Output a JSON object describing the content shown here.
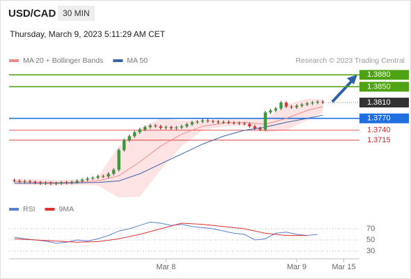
{
  "header": {
    "symbol": "USD/CAD",
    "interval": "30 MIN",
    "datetime": "Thursday, March 9, 2023 5:11:29 AM CET",
    "attribution": "Research © 2023 Trading Central"
  },
  "chart_data": [
    {
      "type": "candlestick",
      "up_color": "#3a9a3a",
      "down_color": "#d83a3a",
      "open": [
        1.3614,
        1.3612,
        1.361,
        1.3611,
        1.3609,
        1.3608,
        1.3606,
        1.3607,
        1.3605,
        1.3606,
        1.3608,
        1.3607,
        1.3609,
        1.3612,
        1.3615,
        1.3618,
        1.362,
        1.3624,
        1.3623,
        1.363,
        1.364,
        1.369,
        1.3715,
        1.3725,
        1.3735,
        1.3742,
        1.3748,
        1.3752,
        1.375,
        1.3746,
        1.3748,
        1.3745,
        1.3747,
        1.375,
        1.3755,
        1.376,
        1.3762,
        1.3765,
        1.3763,
        1.3762,
        1.376,
        1.3761,
        1.3759,
        1.3758,
        1.3757,
        1.3756,
        1.375,
        1.3745,
        1.3742,
        1.3785,
        1.379,
        1.3795,
        1.381,
        1.38,
        1.3798,
        1.3802,
        1.3805,
        1.3808,
        1.381,
        1.3812
      ],
      "high": [
        1.3618,
        1.3616,
        1.3615,
        1.3615,
        1.3613,
        1.3612,
        1.3611,
        1.3611,
        1.361,
        1.3612,
        1.3612,
        1.3613,
        1.3616,
        1.3619,
        1.3622,
        1.3624,
        1.3628,
        1.3628,
        1.3634,
        1.3644,
        1.3694,
        1.3719,
        1.3729,
        1.3739,
        1.3746,
        1.3752,
        1.3756,
        1.3756,
        1.3754,
        1.3752,
        1.3752,
        1.3751,
        1.3754,
        1.3759,
        1.3764,
        1.3766,
        1.3769,
        1.3769,
        1.3767,
        1.3766,
        1.3765,
        1.3765,
        1.3763,
        1.3762,
        1.3761,
        1.376,
        1.3754,
        1.3749,
        1.3789,
        1.3794,
        1.3799,
        1.3814,
        1.3814,
        1.3804,
        1.3806,
        1.3809,
        1.3812,
        1.3814,
        1.3816,
        1.3816
      ],
      "low": [
        1.3608,
        1.3606,
        1.3606,
        1.3605,
        1.3604,
        1.3602,
        1.3602,
        1.3601,
        1.3601,
        1.3602,
        1.3603,
        1.3603,
        1.3605,
        1.3608,
        1.3611,
        1.3614,
        1.3616,
        1.3619,
        1.3619,
        1.3626,
        1.3636,
        1.3686,
        1.3711,
        1.3721,
        1.3731,
        1.3738,
        1.3744,
        1.3746,
        1.3742,
        1.3742,
        1.3741,
        1.3741,
        1.3743,
        1.3746,
        1.3751,
        1.3756,
        1.3758,
        1.3759,
        1.3758,
        1.3756,
        1.3756,
        1.3755,
        1.3754,
        1.3753,
        1.3752,
        1.3746,
        1.3741,
        1.3738,
        1.3738,
        1.3781,
        1.3786,
        1.3791,
        1.3796,
        1.3794,
        1.3794,
        1.3798,
        1.3801,
        1.3804,
        1.3806,
        1.3806
      ],
      "close": [
        1.3612,
        1.361,
        1.3611,
        1.3609,
        1.3608,
        1.3606,
        1.3607,
        1.3605,
        1.3606,
        1.3608,
        1.3607,
        1.3609,
        1.3612,
        1.3615,
        1.3618,
        1.362,
        1.3624,
        1.3623,
        1.363,
        1.364,
        1.369,
        1.3715,
        1.3725,
        1.3735,
        1.3742,
        1.3748,
        1.3752,
        1.375,
        1.3746,
        1.3748,
        1.3745,
        1.3747,
        1.375,
        1.3755,
        1.376,
        1.3762,
        1.3765,
        1.3763,
        1.3762,
        1.376,
        1.3761,
        1.3759,
        1.3758,
        1.3757,
        1.3756,
        1.375,
        1.3745,
        1.3742,
        1.3785,
        1.379,
        1.3795,
        1.381,
        1.38,
        1.3798,
        1.3802,
        1.3805,
        1.3808,
        1.381,
        1.3812,
        1.381
      ],
      "series": [
        {
          "name": "MA 20 + Bollinger Bands",
          "color": "#f08a8a",
          "band_color": "#fde3e3",
          "x": [
            0,
            4,
            8,
            12,
            16,
            20,
            24,
            28,
            32,
            36,
            40,
            44,
            48,
            52,
            56,
            59
          ],
          "values": [
            1.361,
            1.3609,
            1.3608,
            1.3609,
            1.3612,
            1.3625,
            1.366,
            1.37,
            1.373,
            1.375,
            1.3758,
            1.376,
            1.3755,
            1.377,
            1.379,
            1.38
          ],
          "upper": [
            1.3618,
            1.3616,
            1.3614,
            1.3615,
            1.3622,
            1.37,
            1.3745,
            1.377,
            1.3765,
            1.3765,
            1.3768,
            1.3768,
            1.3768,
            1.3805,
            1.382,
            1.3818
          ],
          "lower": [
            1.3602,
            1.3601,
            1.36,
            1.3602,
            1.36,
            1.357,
            1.3572,
            1.364,
            1.37,
            1.374,
            1.375,
            1.3752,
            1.3735,
            1.374,
            1.3765,
            1.3785
          ]
        },
        {
          "name": "MA 50",
          "color": "#3a62a8",
          "x": [
            0,
            4,
            8,
            12,
            16,
            20,
            24,
            28,
            32,
            36,
            40,
            44,
            48,
            52,
            56,
            59
          ],
          "values": [
            1.3606,
            1.3606,
            1.3606,
            1.3607,
            1.3608,
            1.3612,
            1.363,
            1.3655,
            1.368,
            1.3705,
            1.3725,
            1.374,
            1.3748,
            1.376,
            1.377,
            1.3778
          ]
        }
      ],
      "levels": [
        {
          "value": 1.388,
          "label": "1.3880",
          "color": "#4ea214",
          "line": "solid",
          "label_box": true
        },
        {
          "value": 1.385,
          "label": "1.3850",
          "color": "#4ea214",
          "line": "solid",
          "label_box": true
        },
        {
          "value": 1.381,
          "label": "1.3810",
          "color": "#333333",
          "line": "dotted",
          "label_box": true
        },
        {
          "value": 1.377,
          "label": "1.3770",
          "color": "#1f6fe0",
          "line": "solid",
          "label_box": true
        },
        {
          "value": 1.374,
          "label": "1.3740",
          "color": "#e02020",
          "line": "solid",
          "label_box": false
        },
        {
          "value": 1.3715,
          "label": "1.3715",
          "color": "#e02020",
          "line": "solid",
          "label_box": false
        }
      ],
      "ylim": [
        1.3565,
        1.39
      ],
      "xlim": [
        -1,
        66
      ],
      "xticks": [
        {
          "value": 29,
          "label": "Mar 8"
        },
        {
          "value": 54,
          "label": "Mar 9"
        },
        {
          "value": 63,
          "label": "Mar 15"
        }
      ]
    },
    {
      "type": "line",
      "xlim": [
        -1,
        66
      ],
      "ylim": [
        20,
        90
      ],
      "yticks": [
        30,
        50,
        70
      ],
      "grid": true,
      "series": [
        {
          "name": "RSI",
          "color": "#5b7fd0",
          "x": [
            0,
            2,
            4,
            6,
            8,
            10,
            12,
            14,
            16,
            18,
            20,
            22,
            24,
            26,
            28,
            30,
            32,
            34,
            36,
            38,
            40,
            42,
            44,
            46,
            48,
            50,
            52,
            54,
            56,
            58
          ],
          "values": [
            55,
            52,
            50,
            48,
            44,
            46,
            50,
            48,
            52,
            58,
            66,
            70,
            76,
            82,
            80,
            76,
            78,
            74,
            72,
            70,
            66,
            62,
            60,
            50,
            52,
            62,
            64,
            60,
            58,
            60
          ]
        },
        {
          "name": "9MA",
          "color": "#e03030",
          "x": [
            0,
            4,
            8,
            12,
            16,
            20,
            24,
            28,
            32,
            36,
            40,
            44,
            48,
            52,
            56
          ],
          "values": [
            52,
            50,
            48,
            46,
            47,
            52,
            60,
            70,
            80,
            78,
            74,
            70,
            62,
            58,
            58
          ]
        }
      ]
    }
  ]
}
